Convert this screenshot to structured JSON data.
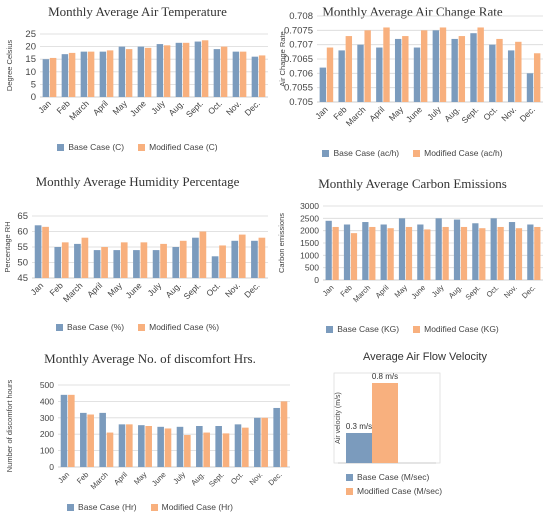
{
  "colors": {
    "base": "#7b9bbd",
    "modified": "#f8b07e",
    "grid": "#d9d9d9",
    "axis": "#bfbfbf",
    "text": "#444444"
  },
  "chart_data": [
    {
      "type": "bar",
      "title": "Monthly Average Air Temperature",
      "ylabel": "Degree Celsius",
      "categories": [
        "Jan",
        "Feb",
        "March",
        "April",
        "May",
        "June",
        "July",
        "Aug.",
        "Sept.",
        "Oct.",
        "Nov.",
        "Dec."
      ],
      "ylim": [
        0,
        25
      ],
      "yticks": [
        0,
        5,
        10,
        15,
        20,
        25
      ],
      "series": [
        {
          "name": "Base Case (C)",
          "values": [
            15,
            17,
            18,
            18,
            20,
            20,
            21,
            21.5,
            22,
            19,
            18,
            16
          ]
        },
        {
          "name": "Modified Case (C)",
          "values": [
            15.5,
            17.5,
            18,
            18.5,
            19,
            19.5,
            20.5,
            21.5,
            22.5,
            20,
            18,
            16.5
          ]
        }
      ],
      "legend": "bottom",
      "grid": true
    },
    {
      "type": "bar",
      "title": "Monthly Average Air Change Rate",
      "ylabel": "Air Change Rate",
      "categories": [
        "Jan",
        "Feb",
        "March",
        "April",
        "May",
        "June",
        "July",
        "Aug.",
        "Sept.",
        "Oct.",
        "Nov.",
        "Dec."
      ],
      "ylim": [
        0.705,
        0.708
      ],
      "yticks": [
        0.705,
        0.7055,
        0.706,
        0.7065,
        0.707,
        0.7075,
        0.708
      ],
      "yticklabels": [
        "0.705",
        "0.7055",
        "0.706",
        "0.7065",
        "0.707",
        "0.7075",
        "0.708"
      ],
      "series": [
        {
          "name": "Base Case (ac/h)",
          "values": [
            0.7062,
            0.7068,
            0.707,
            0.7069,
            0.7072,
            0.7069,
            0.7075,
            0.7072,
            0.7074,
            0.707,
            0.7068,
            0.706
          ]
        },
        {
          "name": "Modified Case (ac/h)",
          "values": [
            0.7069,
            0.7073,
            0.7075,
            0.7076,
            0.7073,
            0.7075,
            0.7076,
            0.7073,
            0.7076,
            0.7072,
            0.7071,
            0.7067
          ]
        }
      ],
      "legend": "bottom",
      "grid": true
    },
    {
      "type": "bar",
      "title": "Monthly Average Humidity Percentage",
      "ylabel": "Percentage RH",
      "categories": [
        "Jan",
        "Feb",
        "March",
        "April",
        "May",
        "June",
        "July",
        "Aug.",
        "Sept.",
        "Oct.",
        "Nov.",
        "Dec."
      ],
      "ylim": [
        45,
        65
      ],
      "yticks": [
        45,
        50,
        55,
        60,
        65
      ],
      "series": [
        {
          "name": "Base Case (%)",
          "values": [
            62,
            55,
            56,
            54,
            54,
            54,
            54,
            55,
            58,
            52,
            57,
            57
          ]
        },
        {
          "name": "Modified Case (%)",
          "values": [
            61.5,
            56.5,
            58,
            55,
            56.5,
            56.5,
            56,
            57,
            60,
            55.5,
            59,
            58
          ]
        }
      ],
      "legend": "bottom",
      "grid": true
    },
    {
      "type": "bar",
      "title": "Monthly Average Carbon Emissions",
      "ylabel": "Carbon emissions",
      "categories": [
        "Jan",
        "Feb",
        "March",
        "April",
        "May",
        "June",
        "July",
        "Aug.",
        "Sept.",
        "Oct.",
        "Nov.",
        "Dec."
      ],
      "ylim": [
        0,
        3000
      ],
      "yticks": [
        0,
        500,
        1000,
        1500,
        2000,
        2500,
        3000
      ],
      "series": [
        {
          "name": "Base Case (KG)",
          "values": [
            2400,
            2250,
            2350,
            2250,
            2500,
            2250,
            2500,
            2450,
            2300,
            2500,
            2350,
            2250
          ]
        },
        {
          "name": "Modified Case (KG)",
          "values": [
            2150,
            1900,
            2150,
            2100,
            2150,
            2050,
            2150,
            2150,
            2100,
            2150,
            2100,
            2150
          ]
        }
      ],
      "legend": "bottom",
      "grid": true
    },
    {
      "type": "bar",
      "title": "Monthly Average No. of discomfort Hrs.",
      "ylabel": "Number of discomfort hours",
      "categories": [
        "Jan",
        "Feb",
        "March",
        "April",
        "May",
        "June",
        "July",
        "Aug.",
        "Sept.",
        "Oct.",
        "Nov.",
        "Dec."
      ],
      "ylim": [
        0,
        500
      ],
      "yticks": [
        0,
        100,
        200,
        300,
        400,
        500
      ],
      "series": [
        {
          "name": "Base Case (Hr)",
          "values": [
            440,
            330,
            330,
            260,
            255,
            245,
            245,
            250,
            250,
            260,
            300,
            360
          ]
        },
        {
          "name": "Modified Case (Hr)",
          "values": [
            440,
            320,
            210,
            260,
            250,
            235,
            195,
            210,
            205,
            240,
            300,
            400
          ]
        }
      ],
      "legend": "bottom",
      "grid": true
    },
    {
      "type": "bar",
      "title": "Average Air Flow Velocity",
      "ylabel": "Air velocity (m/s)",
      "categories": [
        ""
      ],
      "ylim": [
        0,
        0.9
      ],
      "series": [
        {
          "name": "Base Case (M/sec)",
          "values": [
            0.3
          ],
          "data_label": "0.3 m/s"
        },
        {
          "name": "Modified Case (M/sec)",
          "values": [
            0.8
          ],
          "data_label": "0.8 m/s"
        }
      ],
      "legend": "bottom",
      "grid": false
    }
  ]
}
